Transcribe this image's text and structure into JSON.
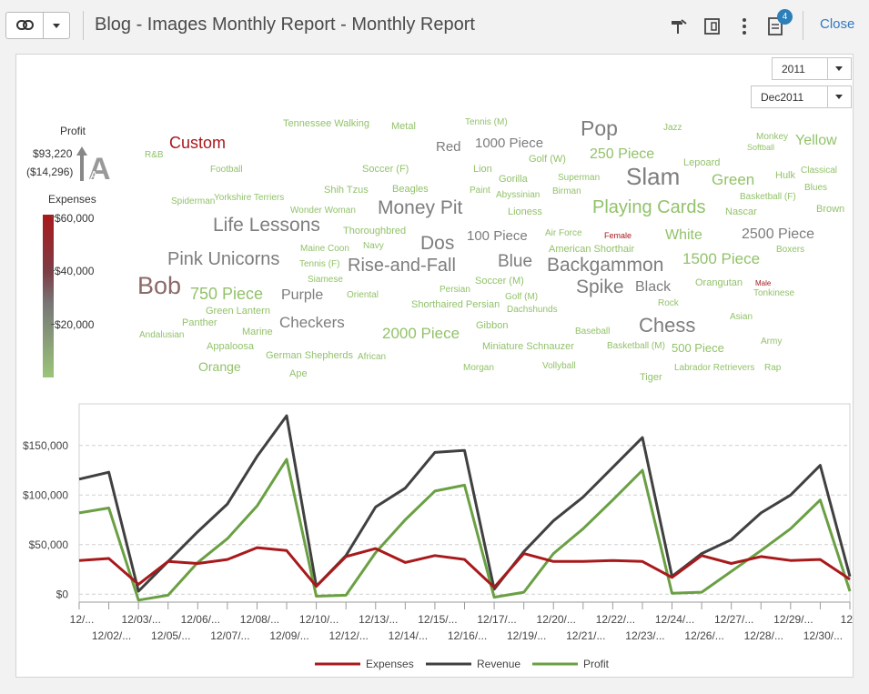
{
  "toolbar": {
    "title": "Blog - Images Monthly Report - Monthly Report",
    "notification_count": "4",
    "close_label": "Close"
  },
  "filters": {
    "year": "2011",
    "month": "Dec2011"
  },
  "legend": {
    "size_title": "Profit",
    "size_max": "$93,220",
    "size_min": "($14,296)",
    "color_title": "Expenses",
    "color_ticks": [
      "$60,000",
      "$40,000",
      "$20,000"
    ]
  },
  "colors": {
    "expenses": "#a8191c",
    "revenue": "#404040",
    "profit": "#6aa043",
    "cloud_light": "#92c26a",
    "cloud_gray": "#7d7d7d",
    "cloud_red": "#a8191c",
    "accent": "#2c7fb8"
  },
  "word_cloud": [
    {
      "text": "Tennessee Walking",
      "color": "#92c26a"
    },
    {
      "text": "Metal",
      "color": "#92c26a"
    },
    {
      "text": "Tennis (M)",
      "color": "#92c26a"
    },
    {
      "text": "Pop",
      "color": "#7d7d7d"
    },
    {
      "text": "Jazz",
      "color": "#92c26a"
    },
    {
      "text": "Monkey",
      "color": "#92c26a"
    },
    {
      "text": "Softball",
      "color": "#92c26a"
    },
    {
      "text": "Yellow",
      "color": "#92c26a"
    },
    {
      "text": "Custom",
      "color": "#a8191c"
    },
    {
      "text": "Red",
      "color": "#7d7d7d"
    },
    {
      "text": "1000 Piece",
      "color": "#7d7d7d"
    },
    {
      "text": "R&B",
      "color": "#92c26a"
    },
    {
      "text": "250 Piece",
      "color": "#92c26a"
    },
    {
      "text": "Golf (W)",
      "color": "#92c26a"
    },
    {
      "text": "Lepoard",
      "color": "#92c26a"
    },
    {
      "text": "Football",
      "color": "#92c26a"
    },
    {
      "text": "Soccer (F)",
      "color": "#92c26a"
    },
    {
      "text": "Lion",
      "color": "#92c26a"
    },
    {
      "text": "Gorilla",
      "color": "#92c26a"
    },
    {
      "text": "Superman",
      "color": "#92c26a"
    },
    {
      "text": "Slam",
      "color": "#7d7d7d"
    },
    {
      "text": "Green",
      "color": "#92c26a"
    },
    {
      "text": "Hulk",
      "color": "#92c26a"
    },
    {
      "text": "Classical",
      "color": "#92c26a"
    },
    {
      "text": "Shih Tzus",
      "color": "#92c26a"
    },
    {
      "text": "Beagles",
      "color": "#92c26a"
    },
    {
      "text": "Paint",
      "color": "#92c26a"
    },
    {
      "text": "Abyssinian",
      "color": "#92c26a"
    },
    {
      "text": "Birman",
      "color": "#92c26a"
    },
    {
      "text": "Blues",
      "color": "#92c26a"
    },
    {
      "text": "Spiderman",
      "color": "#92c26a"
    },
    {
      "text": "Yorkshire Terriers",
      "color": "#92c26a"
    },
    {
      "text": "Basketball (F)",
      "color": "#92c26a"
    },
    {
      "text": "Wonder Woman",
      "color": "#92c26a"
    },
    {
      "text": "Money Pit",
      "color": "#7d7d7d"
    },
    {
      "text": "Lioness",
      "color": "#92c26a"
    },
    {
      "text": "Playing Cards",
      "color": "#92c26a"
    },
    {
      "text": "Nascar",
      "color": "#92c26a"
    },
    {
      "text": "Brown",
      "color": "#92c26a"
    },
    {
      "text": "Life Lessons",
      "color": "#7d7d7d"
    },
    {
      "text": "Thoroughbred",
      "color": "#92c26a"
    },
    {
      "text": "100 Piece",
      "color": "#7d7d7d"
    },
    {
      "text": "Air Force",
      "color": "#92c26a"
    },
    {
      "text": "Female",
      "color": "#a8191c"
    },
    {
      "text": "White",
      "color": "#92c26a"
    },
    {
      "text": "2500 Piece",
      "color": "#7d7d7d"
    },
    {
      "text": "Navy",
      "color": "#92c26a"
    },
    {
      "text": "Dos",
      "color": "#7d7d7d"
    },
    {
      "text": "Maine Coon",
      "color": "#92c26a"
    },
    {
      "text": "American Shorthair",
      "color": "#92c26a"
    },
    {
      "text": "Boxers",
      "color": "#92c26a"
    },
    {
      "text": "Pink Unicorns",
      "color": "#7d7d7d"
    },
    {
      "text": "Tennis (F)",
      "color": "#92c26a"
    },
    {
      "text": "Rise-and-Fall",
      "color": "#7d7d7d"
    },
    {
      "text": "Blue",
      "color": "#7d7d7d"
    },
    {
      "text": "Backgammon",
      "color": "#7d7d7d"
    },
    {
      "text": "1500 Piece",
      "color": "#92c26a"
    },
    {
      "text": "Siamese",
      "color": "#92c26a"
    },
    {
      "text": "Soccer (M)",
      "color": "#92c26a"
    },
    {
      "text": "Orangutan",
      "color": "#92c26a"
    },
    {
      "text": "Male",
      "color": "#a8191c"
    },
    {
      "text": "Bob",
      "color": "#8c6a6a"
    },
    {
      "text": "750 Piece",
      "color": "#92c26a"
    },
    {
      "text": "Purple",
      "color": "#7d7d7d"
    },
    {
      "text": "Oriental",
      "color": "#92c26a"
    },
    {
      "text": "Spike",
      "color": "#7d7d7d"
    },
    {
      "text": "Black",
      "color": "#7d7d7d"
    },
    {
      "text": "Tonkinese",
      "color": "#92c26a"
    },
    {
      "text": "Shorthaired Persian",
      "color": "#92c26a"
    },
    {
      "text": "Persian",
      "color": "#92c26a"
    },
    {
      "text": "Golf (M)",
      "color": "#92c26a"
    },
    {
      "text": "Dachshunds",
      "color": "#92c26a"
    },
    {
      "text": "Rock",
      "color": "#92c26a"
    },
    {
      "text": "Green Lantern",
      "color": "#92c26a"
    },
    {
      "text": "Checkers",
      "color": "#7d7d7d"
    },
    {
      "text": "Chess",
      "color": "#7d7d7d"
    },
    {
      "text": "Asian",
      "color": "#92c26a"
    },
    {
      "text": "Panther",
      "color": "#92c26a"
    },
    {
      "text": "Marine",
      "color": "#92c26a"
    },
    {
      "text": "Gibbon",
      "color": "#92c26a"
    },
    {
      "text": "Andalusian",
      "color": "#92c26a"
    },
    {
      "text": "2000 Piece",
      "color": "#92c26a"
    },
    {
      "text": "Baseball",
      "color": "#92c26a"
    },
    {
      "text": "Army",
      "color": "#92c26a"
    },
    {
      "text": "Appaloosa",
      "color": "#92c26a"
    },
    {
      "text": "Miniature Schnauzer",
      "color": "#92c26a"
    },
    {
      "text": "Basketball (M)",
      "color": "#92c26a"
    },
    {
      "text": "500 Piece",
      "color": "#92c26a"
    },
    {
      "text": "German Shepherds",
      "color": "#92c26a"
    },
    {
      "text": "African",
      "color": "#92c26a"
    },
    {
      "text": "Orange",
      "color": "#92c26a"
    },
    {
      "text": "Morgan",
      "color": "#92c26a"
    },
    {
      "text": "Vollyball",
      "color": "#92c26a"
    },
    {
      "text": "Labrador Retrievers",
      "color": "#92c26a"
    },
    {
      "text": "Rap",
      "color": "#92c26a"
    },
    {
      "text": "Ape",
      "color": "#92c26a"
    },
    {
      "text": "Tiger",
      "color": "#92c26a"
    }
  ],
  "chart_data": {
    "type": "line",
    "title": "",
    "xlabel": "",
    "ylabel": "",
    "x_tick_labels_top": [
      "12/...",
      "12/03/...",
      "12/06/...",
      "12/08/...",
      "12/10/...",
      "12/13/...",
      "12/15/...",
      "12/17/...",
      "12/20/...",
      "12/22/...",
      "12/24/...",
      "12/27/...",
      "12/29/...",
      "12/..."
    ],
    "x_tick_labels_bottom": [
      "12/02/...",
      "12/05/...",
      "12/07/...",
      "12/09/...",
      "12/12/...",
      "12/14/...",
      "12/16/...",
      "12/19/...",
      "12/21/...",
      "12/23/...",
      "12/26/...",
      "12/28/...",
      "12/30/..."
    ],
    "y_tick_labels": [
      "$150,000",
      "$100,000",
      "$50,000",
      "$0"
    ],
    "ylim": [
      -8000,
      192000
    ],
    "grid": true,
    "legend_position": "bottom",
    "series": [
      {
        "name": "Expenses",
        "color": "#a8191c",
        "values": [
          34000,
          36000,
          10000,
          33000,
          31000,
          35000,
          47000,
          44000,
          8000,
          38000,
          46000,
          32000,
          39000,
          35000,
          7000,
          41000,
          33000,
          33000,
          34000,
          33000,
          17000,
          39000,
          31000,
          38000,
          34000,
          35000,
          15000
        ]
      },
      {
        "name": "Revenue",
        "color": "#404040",
        "values": [
          116000,
          123000,
          3000,
          33000,
          63000,
          91000,
          139000,
          180000,
          8000,
          39000,
          88000,
          107000,
          143000,
          145000,
          5000,
          43000,
          74000,
          98000,
          128000,
          158000,
          18000,
          41000,
          55000,
          82000,
          100000,
          130000,
          18000
        ]
      },
      {
        "name": "Profit",
        "color": "#6aa043",
        "values": [
          82000,
          87000,
          -6000,
          -1000,
          32000,
          56000,
          89000,
          136000,
          -2000,
          -1000,
          42000,
          75000,
          104000,
          110000,
          -3000,
          2000,
          41000,
          66000,
          95000,
          125000,
          1000,
          2000,
          23000,
          44000,
          66000,
          95000,
          3000
        ]
      }
    ]
  }
}
